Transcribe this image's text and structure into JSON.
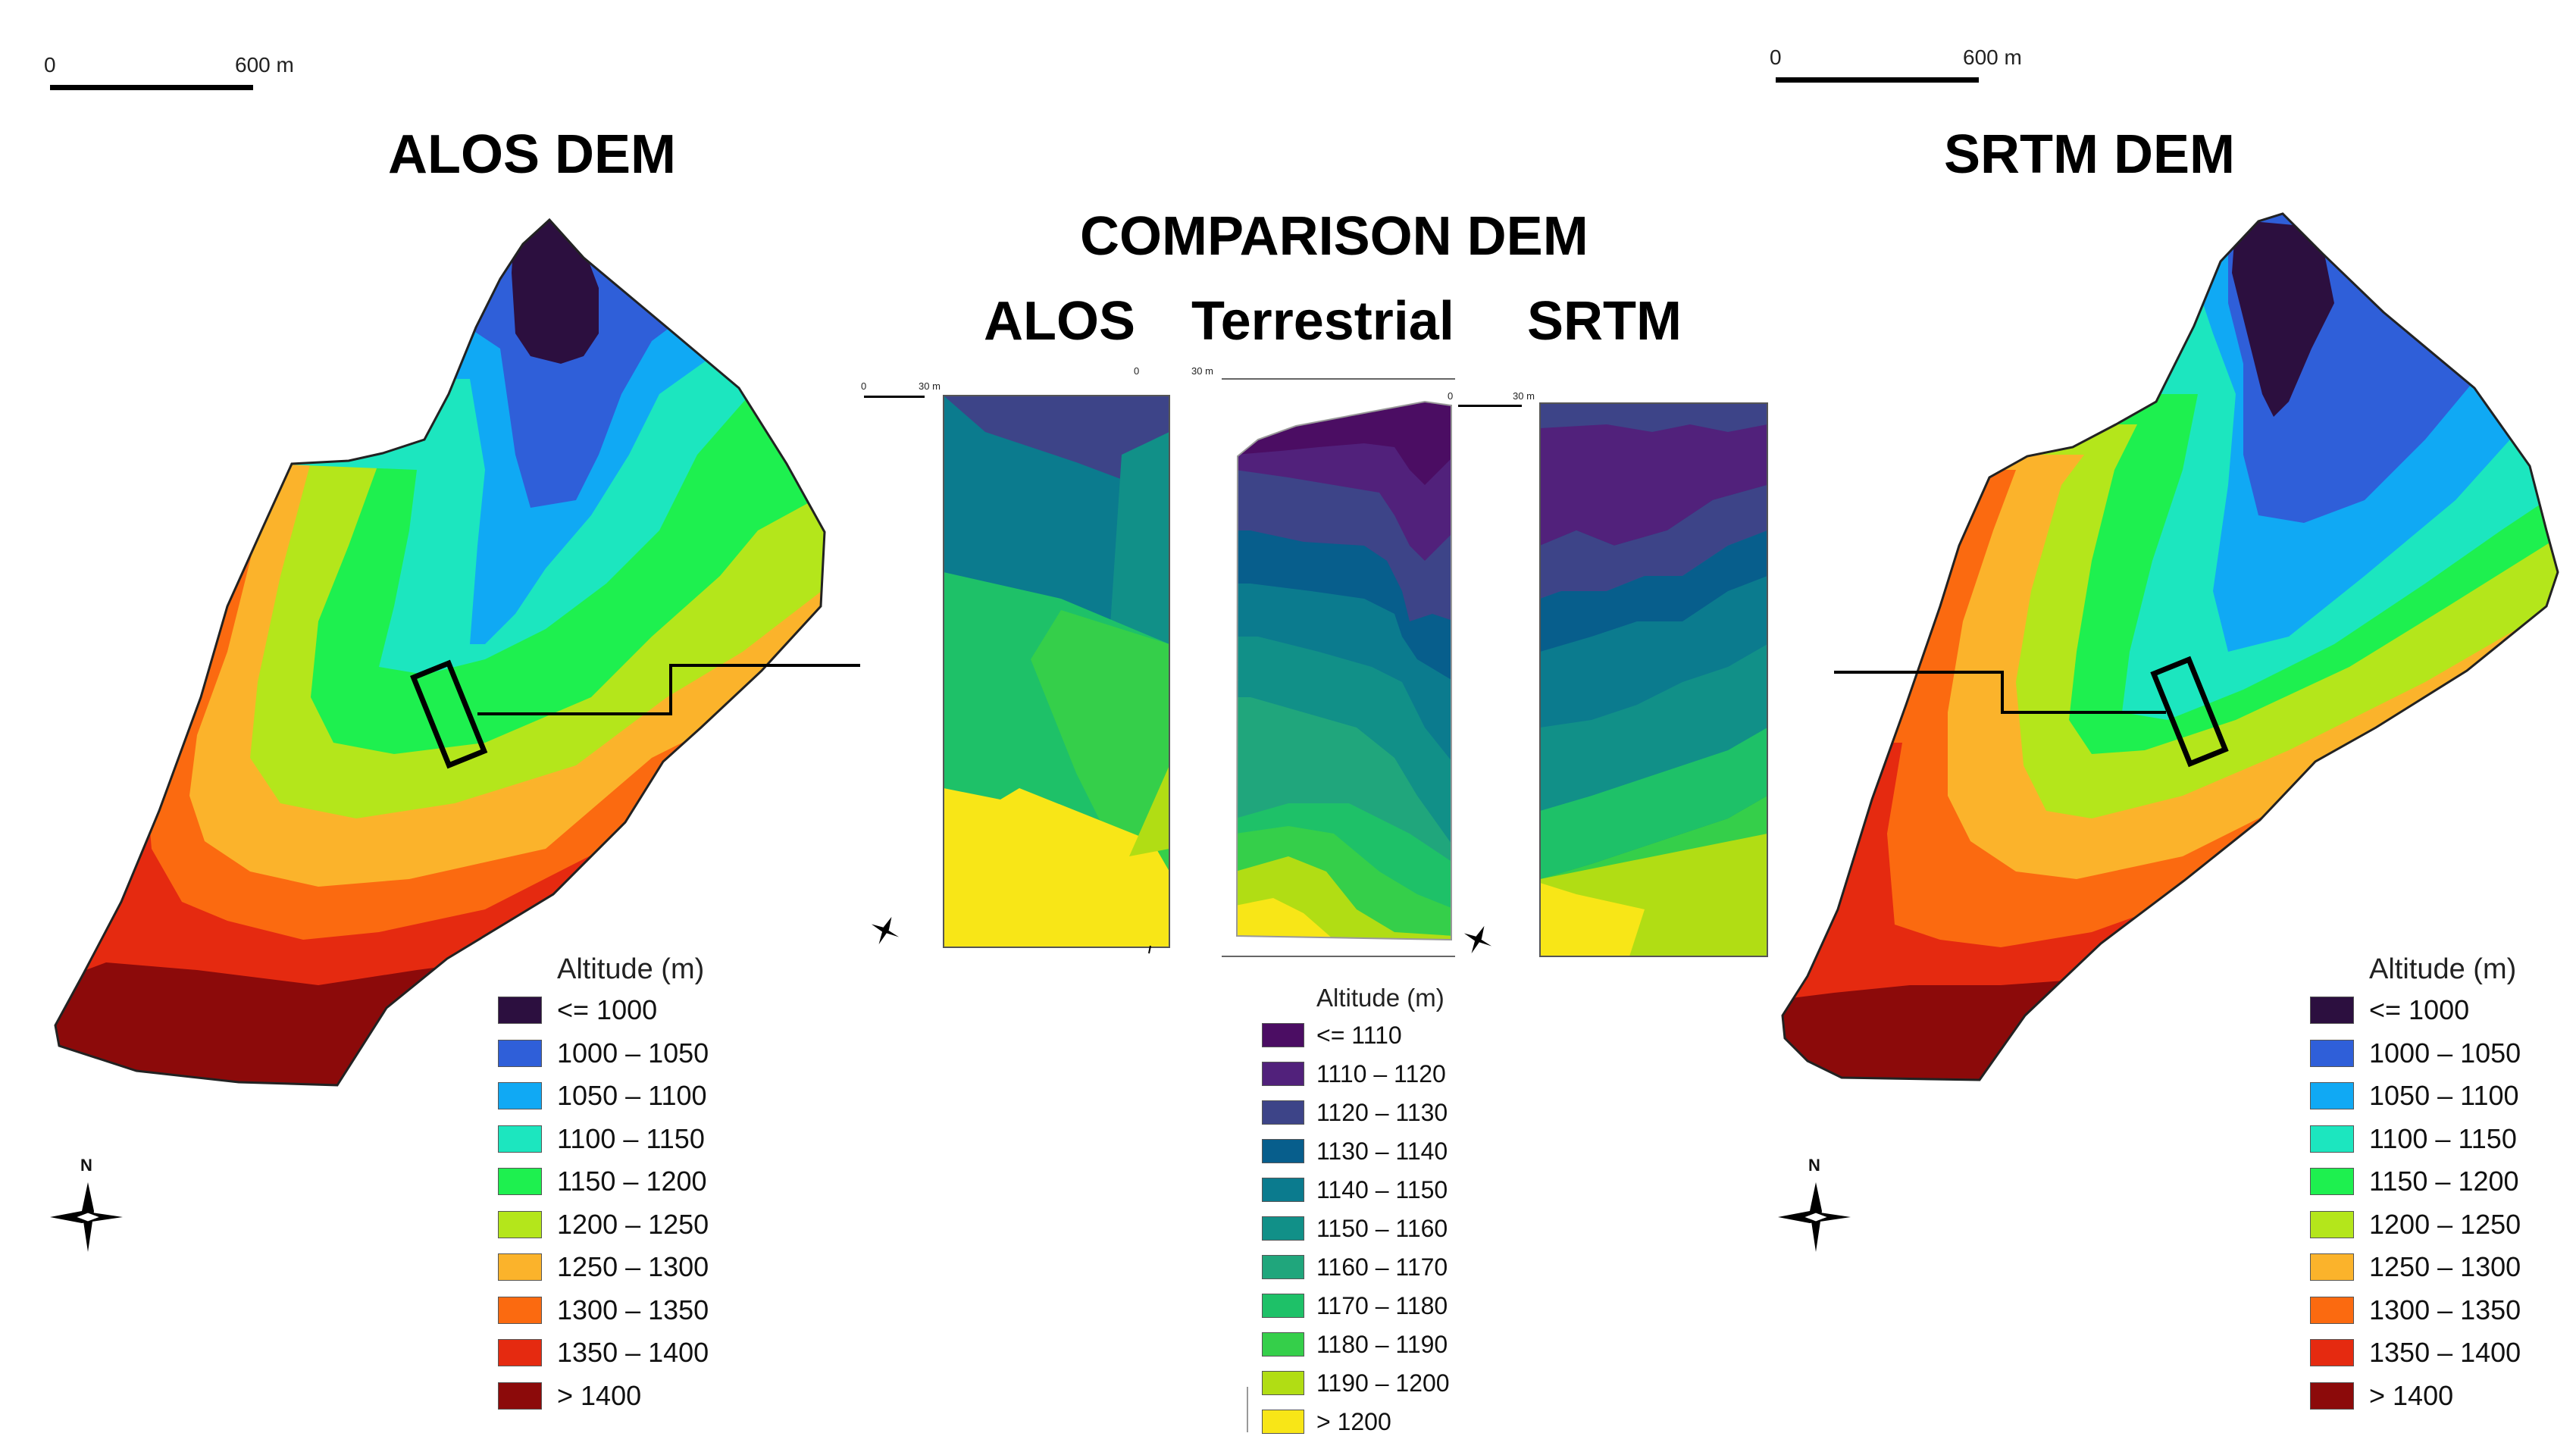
{
  "titles": {
    "left": "ALOS DEM",
    "right": "SRTM DEM",
    "center": "COMPARISON DEM",
    "sub_alos": "ALOS",
    "sub_terrestrial": "Terrestrial",
    "sub_srtm": "SRTM"
  },
  "scalebars": {
    "left": {
      "zero": "0",
      "dist": "600 m"
    },
    "right": {
      "zero": "0",
      "dist": "600 m"
    },
    "panel_alos": {
      "zero": "0",
      "dist": "30 m"
    },
    "panel_terr": {
      "zero": "0",
      "dist": "30 m"
    },
    "panel_srtm": {
      "zero": "0",
      "dist": "30 m"
    },
    "panel_alos_right_zero": "0"
  },
  "north": {
    "label": "N"
  },
  "legend_main": {
    "title": "Altitude (m)",
    "items": [
      {
        "label": "<= 1000",
        "color": "#2c0f3f"
      },
      {
        "label": "1000 – 1050",
        "color": "#2f5fd9"
      },
      {
        "label": "1050 – 1100",
        "color": "#10a9f4"
      },
      {
        "label": "1100 – 1150",
        "color": "#1ce6bf"
      },
      {
        "label": "1150 – 1200",
        "color": "#1ef04f"
      },
      {
        "label": "1200 – 1250",
        "color": "#b4e61b"
      },
      {
        "label": "1250 – 1300",
        "color": "#fbb32b"
      },
      {
        "label": "1300 – 1350",
        "color": "#fb6a10"
      },
      {
        "label": "1350 – 1400",
        "color": "#e52a10"
      },
      {
        "label": "> 1400",
        "color": "#8c0a0a"
      }
    ]
  },
  "legend_comp": {
    "title": "Altitude (m)",
    "items": [
      {
        "label": "<= 1110",
        "color": "#4b0d63"
      },
      {
        "label": "1110 – 1120",
        "color": "#51217b"
      },
      {
        "label": "1120 – 1130",
        "color": "#3d4488"
      },
      {
        "label": "1130 – 1140",
        "color": "#075e8c"
      },
      {
        "label": "1140 – 1150",
        "color": "#0b7b8e"
      },
      {
        "label": "1150 – 1160",
        "color": "#119088"
      },
      {
        "label": "1160 – 1170",
        "color": "#20a67c"
      },
      {
        "label": "1170 – 1180",
        "color": "#1ec168"
      },
      {
        "label": "1180 – 1190",
        "color": "#35cf4a"
      },
      {
        "label": "1190 – 1200",
        "color": "#b1dd14"
      },
      {
        "label": "> 1200",
        "color": "#f8e617"
      }
    ]
  }
}
